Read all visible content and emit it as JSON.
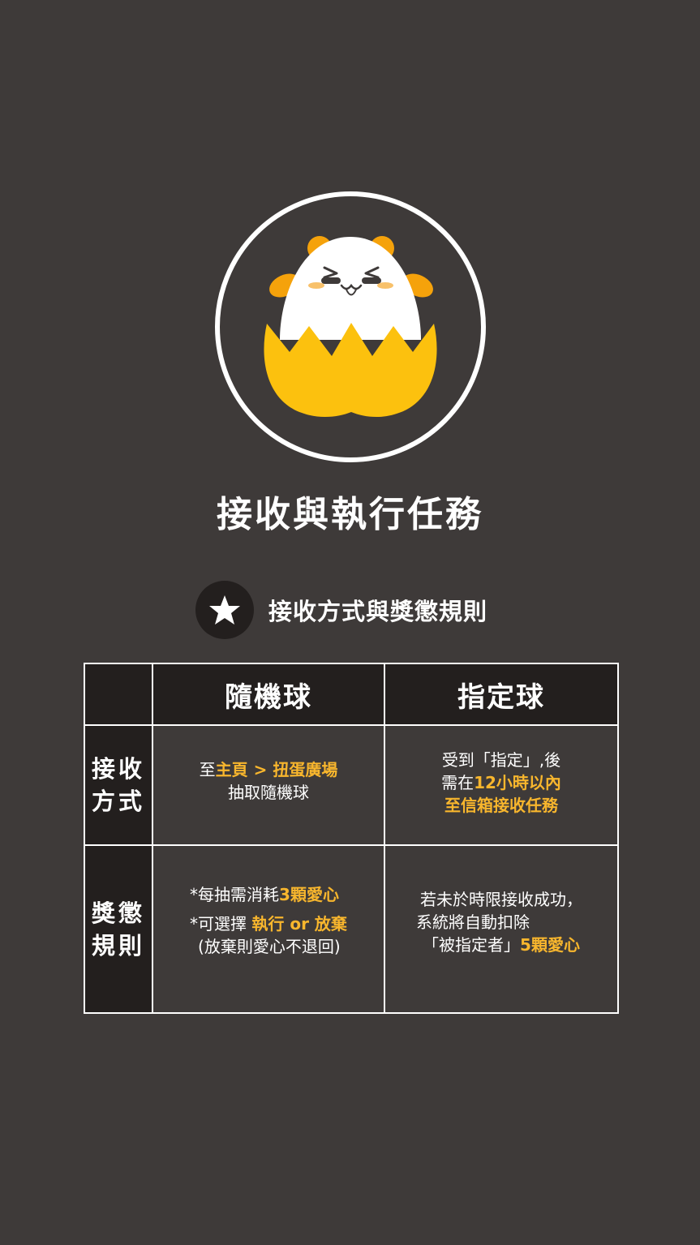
{
  "title": "接收與執行任務",
  "section": {
    "icon": "star-icon",
    "label": "接收方式與獎懲規則"
  },
  "table": {
    "columns": [
      "隨機球",
      "指定球"
    ],
    "rows": [
      {
        "header_lines": [
          "接收",
          "方式"
        ],
        "random": {
          "line1_prefix": "至",
          "line1_highlight": "主頁 > 扭蛋廣場",
          "line2": "抽取隨機球"
        },
        "assigned": {
          "line1": "受到「指定」,後",
          "line2_prefix": "需在",
          "line2_highlight": "12小時以內",
          "line3_highlight": "至信箱接收任務"
        }
      },
      {
        "header_lines": [
          "獎懲",
          "規則"
        ],
        "random": {
          "line1_prefix": "*每抽需消耗",
          "line1_highlight": "3顆愛心",
          "line2_prefix": "*可選擇 ",
          "line2_highlight": "執行 or 放棄",
          "line3": "(放棄則愛心不退回)"
        },
        "assigned": {
          "line1": "若未於時限接收成功，",
          "line2": "系統將自動扣除",
          "line3_prefix": "「被指定者」",
          "line3_highlight": "5顆愛心"
        }
      }
    ]
  },
  "colors": {
    "background": "#3e3a39",
    "dark_panel": "#231f1e",
    "accent": "#f8b62d",
    "egg_shell": "#fcc10e",
    "ear": "#f5a20b"
  }
}
